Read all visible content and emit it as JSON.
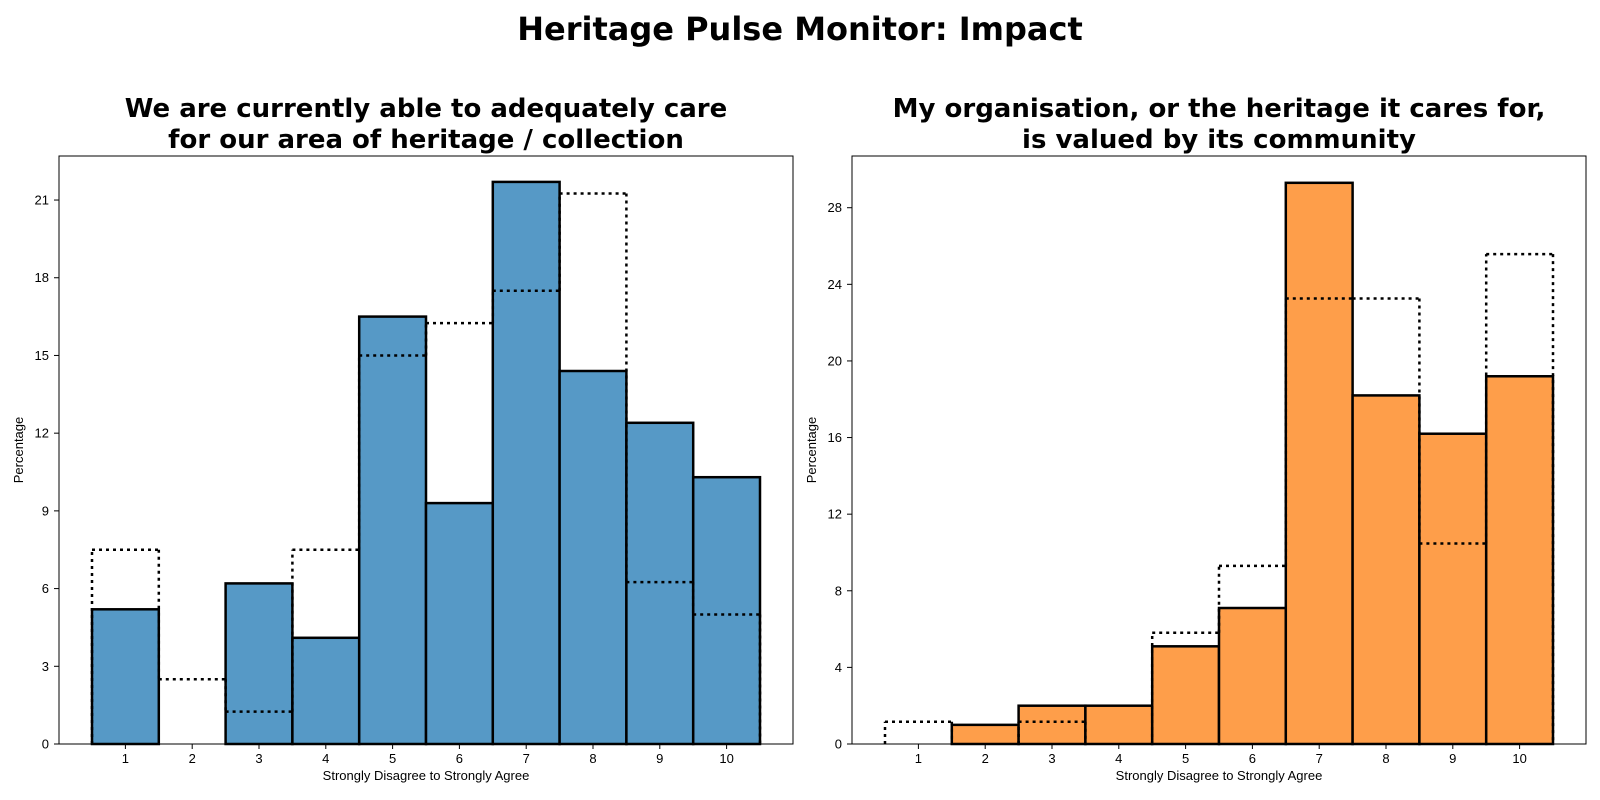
{
  "figure": {
    "title": "Heritage Pulse Monitor: Impact"
  },
  "chart_data": [
    {
      "type": "bar",
      "title_lines": [
        "We are currently able to adequately care",
        "for our area of heritage / collection"
      ],
      "xlabel": "Strongly Disagree to Strongly Agree",
      "ylabel": "Percentage",
      "categories": [
        "1",
        "2",
        "3",
        "4",
        "5",
        "6",
        "7",
        "8",
        "9",
        "10"
      ],
      "ylim": [
        0,
        22.7
      ],
      "yticks": [
        0,
        3,
        6,
        9,
        12,
        15,
        18,
        21
      ],
      "bar_color": "#5699c6",
      "series": [
        {
          "style": "filled",
          "values": [
            5.2,
            0,
            6.2,
            4.1,
            16.5,
            9.3,
            21.7,
            14.4,
            12.4,
            10.3
          ]
        },
        {
          "style": "dotted",
          "values": [
            7.5,
            2.5,
            1.25,
            7.5,
            15.0,
            16.25,
            17.5,
            21.25,
            6.25,
            5.0
          ]
        }
      ]
    },
    {
      "type": "bar",
      "title_lines": [
        "My organisation, or the heritage it cares for,",
        "is valued by its community"
      ],
      "xlabel": "Strongly Disagree to Strongly Agree",
      "ylabel": "Percentage",
      "categories": [
        "1",
        "2",
        "3",
        "4",
        "5",
        "6",
        "7",
        "8",
        "9",
        "10"
      ],
      "ylim": [
        0,
        30.7
      ],
      "yticks": [
        0,
        4,
        8,
        12,
        16,
        20,
        24,
        28
      ],
      "bar_color": "#fe9e4a",
      "series": [
        {
          "style": "filled",
          "values": [
            0,
            1.0,
            2.0,
            2.0,
            5.1,
            7.1,
            29.3,
            18.2,
            16.2,
            19.2
          ]
        },
        {
          "style": "dotted",
          "values": [
            1.16,
            0,
            1.16,
            0,
            5.81,
            9.3,
            23.26,
            23.26,
            10.47,
            25.58
          ]
        }
      ]
    }
  ]
}
